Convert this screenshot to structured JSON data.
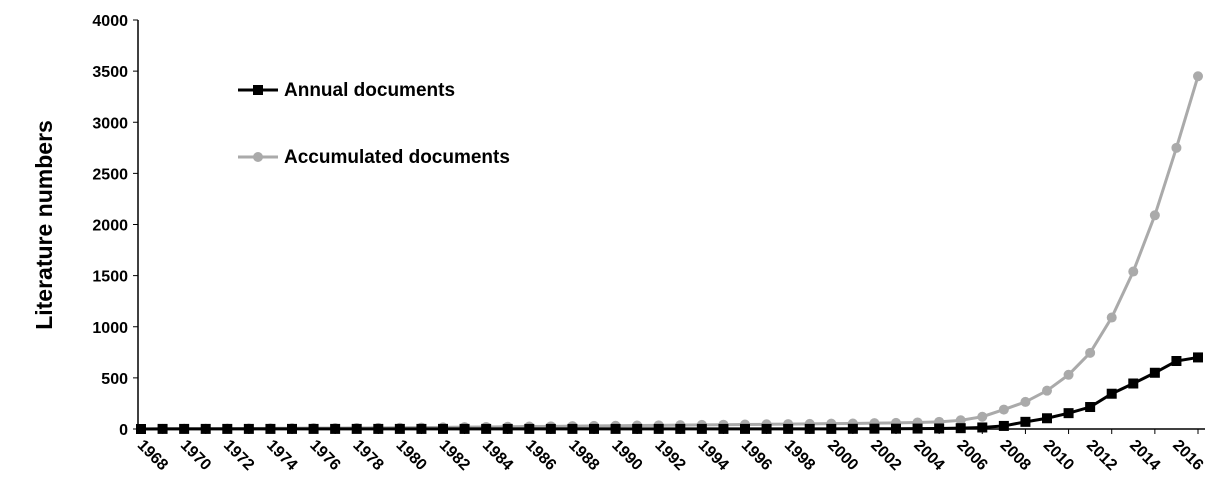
{
  "chart_data": {
    "type": "line",
    "y_label": "Literature numbers",
    "x": [
      1967,
      1968,
      1969,
      1970,
      1971,
      1972,
      1973,
      1974,
      1975,
      1976,
      1977,
      1978,
      1979,
      1980,
      1981,
      1982,
      1983,
      1984,
      1985,
      1986,
      1987,
      1988,
      1989,
      1990,
      1991,
      1992,
      1993,
      1994,
      1995,
      1996,
      1997,
      1998,
      1999,
      2000,
      2001,
      2002,
      2003,
      2004,
      2005,
      2006,
      2007,
      2008,
      2009,
      2010,
      2011,
      2012,
      2013,
      2014,
      2015,
      2016
    ],
    "series": [
      {
        "name": "Annual documents",
        "color": "#000000",
        "marker": "square",
        "values": [
          0,
          1,
          1,
          1,
          1,
          1,
          1,
          1,
          1,
          1,
          1,
          1,
          1,
          1,
          1,
          1,
          1,
          1,
          1,
          1,
          1,
          1,
          1,
          1,
          1,
          1,
          1,
          1,
          1,
          1,
          1,
          1,
          1,
          2,
          3,
          3,
          4,
          5,
          8,
          15,
          30,
          70,
          105,
          155,
          215,
          345,
          445,
          550,
          665,
          700
        ]
      },
      {
        "name": "Accumulated documents",
        "color": "#aaaaaa",
        "marker": "circle",
        "values": [
          0,
          1,
          2,
          3,
          4,
          5,
          6,
          7,
          8,
          9,
          10,
          11,
          12,
          14,
          16,
          18,
          20,
          22,
          24,
          26,
          28,
          30,
          32,
          34,
          36,
          38,
          40,
          42,
          44,
          46,
          48,
          50,
          52,
          54,
          57,
          60,
          64,
          70,
          85,
          120,
          190,
          265,
          375,
          530,
          745,
          1090,
          1540,
          2090,
          2750,
          3450
        ]
      }
    ],
    "xlim": [
      1967,
      2016
    ],
    "xticks": [
      1968,
      1970,
      1972,
      1974,
      1976,
      1978,
      1980,
      1982,
      1984,
      1986,
      1988,
      1990,
      1992,
      1994,
      1996,
      1998,
      2000,
      2002,
      2004,
      2006,
      2008,
      2010,
      2012,
      2014,
      2016
    ],
    "ylim": [
      0,
      4000
    ],
    "yticks": [
      0,
      500,
      1000,
      1500,
      2000,
      2500,
      3000,
      3500,
      4000
    ],
    "legend": "upper left"
  }
}
